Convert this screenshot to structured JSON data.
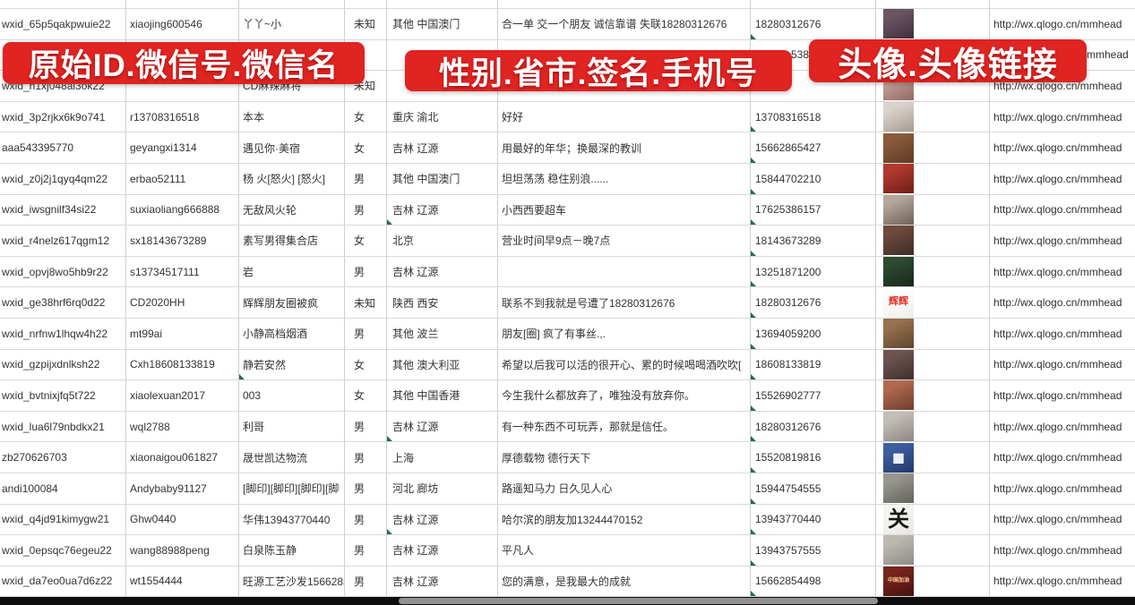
{
  "banners": [
    {
      "text": "原始ID.微信号.微信名"
    },
    {
      "text": "性别.省市.签名.手机号"
    },
    {
      "text": "头像.头像链接"
    }
  ],
  "colors": {
    "banner_red": "#df2422",
    "error_triangle_green": "#1e7145",
    "scrollbar_track": "#0e0e0e",
    "scrollbar_thumb": "#929292"
  },
  "avatar_link_text": "http://wx.qlogo.cn/mmhead",
  "rows": [
    {
      "wxid": "wxid_65p5qakpwuie22",
      "wechat_id": "xiaojing600546",
      "name": "丫丫~小",
      "gender": "未知",
      "region": "其他 中国澳门",
      "signature": "合一单 交一个朋友 诚信靠谱 失联18280312676",
      "phone": "18280312676",
      "phone_tri": true,
      "link": "http://wx.qlogo.cn/mmhead",
      "avatar": {
        "c1": "#6b5563",
        "c2": "#3e2f3c"
      }
    },
    {
      "wxid": "",
      "wechat_id": "",
      "name": "",
      "gender": "",
      "region": "",
      "signature": "",
      "phone": "5386",
      "phone_indent": 40,
      "link": "mmhead",
      "link_indent": 104,
      "avatar": {
        "c1": "#cfc6c0",
        "c2": "#a99d96"
      }
    },
    {
      "wxid": "wxid_h1xj048al3ok22",
      "wechat_id": "",
      "name": "CD麻辣麻将",
      "gender": "未知",
      "region": "",
      "signature": "",
      "phone": "",
      "link": "http://wx.qlogo.cn/mmhead",
      "avatar": {
        "c1": "#c9a49b",
        "c2": "#8f6a64"
      }
    },
    {
      "wxid": "wxid_3p2rjkx6k9o741",
      "wechat_id": "r13708316518",
      "name": "本本",
      "gender": "女",
      "region": "重庆 渝北",
      "signature": "好好",
      "phone": "13708316518",
      "phone_tri": true,
      "link": "http://wx.qlogo.cn/mmhead",
      "avatar": {
        "c1": "#d9d3cd",
        "c2": "#a79a92"
      }
    },
    {
      "wxid": "aaa543395770",
      "wechat_id": "geyangxi1314",
      "name": "遇见你·美宿",
      "gender": "女",
      "region": "吉林 辽源",
      "signature": "用最好的年华；换最深的教训",
      "phone": "15662865427",
      "phone_tri": true,
      "link": "http://wx.qlogo.cn/mmhead",
      "avatar": {
        "c1": "#8a5a3b",
        "c2": "#5d3a26"
      }
    },
    {
      "wxid": "wxid_z0j2j1qyq4qm22",
      "wechat_id": "erbao52111",
      "name": "杨 火[怒火] [怒火]",
      "gender": "男",
      "region": "其他 中国澳门",
      "signature": "坦坦荡荡 稳住别浪......",
      "phone": "15844702210",
      "phone_tri": true,
      "link": "http://wx.qlogo.cn/mmhead",
      "avatar": {
        "c1": "#b2392c",
        "c2": "#6d1f18"
      }
    },
    {
      "wxid": "wxid_iwsgnilf34si22",
      "wechat_id": "suxiaoliang666888",
      "name": "无敌风火轮",
      "gender": "男",
      "region": "吉林 辽源",
      "region_tri": true,
      "signature": "小西西要超车",
      "phone": "17625386157",
      "phone_tri": true,
      "link": "http://wx.qlogo.cn/mmhead",
      "avatar": {
        "c1": "#b3a79c",
        "c2": "#6f6158"
      }
    },
    {
      "wxid": "wxid_r4nelz617qgm12",
      "wechat_id": "sx18143673289",
      "name": "素写男得集合店",
      "gender": "女",
      "region": "北京",
      "signature": "营业时间早9点－晚7点",
      "phone": "18143673289",
      "phone_tri": true,
      "link": "http://wx.qlogo.cn/mmhead",
      "avatar": {
        "c1": "#6e4a3c",
        "c2": "#3c2c26"
      }
    },
    {
      "wxid": "wxid_opvj8wo5hb9r22",
      "wechat_id": "s13734517111",
      "name": "岩",
      "gender": "男",
      "region": "吉林 辽源",
      "signature": "",
      "phone": "13251871200",
      "phone_tri": true,
      "link": "http://wx.qlogo.cn/mmhead",
      "avatar": {
        "c1": "#2e4a33",
        "c2": "#16281b"
      }
    },
    {
      "wxid": "wxid_ge38hrf6rq0d22",
      "wechat_id": "CD2020HH",
      "name": "辉辉朋友圈被疯",
      "gender": "未知",
      "region": "陕西 西安",
      "signature": "联系不到我就是号遭了18280312676",
      "phone": "18280312676",
      "phone_tri": true,
      "link": "http://wx.qlogo.cn/mmhead",
      "avatar": {
        "c1": "#fdfdfd",
        "c2": "#f0eeec",
        "label": "辉辉",
        "label_color": "#e03028",
        "label_size": 11
      }
    },
    {
      "wxid": "wxid_nrfnw1lhqw4h22",
      "wechat_id": "mt99ai",
      "name": "小静高档烟酒",
      "gender": "男",
      "region": "其他 波兰",
      "signature": "朋友[圈] 疯了有事丝.,.",
      "phone": "13694059200",
      "phone_tri": true,
      "link": "http://wx.qlogo.cn/mmhead",
      "avatar": {
        "c1": "#96724f",
        "c2": "#5f4430"
      }
    },
    {
      "wxid": "wxid_gzpijxdnlksh22",
      "wechat_id": "Cxh18608133819",
      "name": "静若安然",
      "name_tri": true,
      "gender": "女",
      "region": "其他 澳大利亚",
      "signature": "希望以后我可以活的很开心、累的时候喝喝酒吹吹[",
      "phone": "18608133819",
      "phone_tri": true,
      "link": "http://wx.qlogo.cn/mmhead",
      "avatar": {
        "c1": "#6d5450",
        "c2": "#3f2e2c"
      }
    },
    {
      "wxid": "wxid_bvtnixjfq5t722",
      "wechat_id": "xiaolexuan2017",
      "name": "003",
      "gender": "女",
      "region": "其他 中国香港",
      "signature": "今生我什么都放弃了，唯独没有放弃你。",
      "phone": "15526902777",
      "phone_tri": true,
      "link": "http://wx.qlogo.cn/mmhead",
      "avatar": {
        "c1": "#b06a4e",
        "c2": "#6f3c2c"
      }
    },
    {
      "wxid": "wxid_lua6l79nbdkx21",
      "wechat_id": "wql2788",
      "name": "利哥",
      "gender": "男",
      "region": "吉林 辽源",
      "region_tri": true,
      "signature": "有一种东西不可玩弄，那就是信任。",
      "phone": "18280312676",
      "phone_tri": true,
      "link": "http://wx.qlogo.cn/mmhead",
      "avatar": {
        "c1": "#c2bdb6",
        "c2": "#8d8780"
      }
    },
    {
      "wxid": "zb270626703",
      "wechat_id": "xiaonaigou061827",
      "name": "晟世凯达物流",
      "gender": "男",
      "region": "上海",
      "signature": "厚德载物 德行天下",
      "phone": "15520819816",
      "phone_tri": true,
      "link": "http://wx.qlogo.cn/mmhead",
      "avatar": {
        "c1": "#3d5fa0",
        "c2": "#23386a",
        "label": "▦",
        "label_color": "#ffffff",
        "label_size": 14
      }
    },
    {
      "wxid": "andi100084",
      "wechat_id": "Andybaby91127",
      "name": "[脚印][脚印][脚印][脚",
      "gender": "男",
      "region": "河北 廊坊",
      "signature": "路遥知马力 日久见人心",
      "phone": "15944754555",
      "phone_tri": true,
      "link": "http://wx.qlogo.cn/mmhead",
      "avatar": {
        "c1": "#97968f",
        "c2": "#63625c"
      }
    },
    {
      "wxid": "wxid_q4jd91kimygw21",
      "wechat_id": "Ghw0440",
      "name": "华伟13943770440",
      "gender": "男",
      "region": "吉林 辽源",
      "region_tri": true,
      "signature": "哈尔滨的朋友加13244470152",
      "phone": "13943770440",
      "phone_tri": true,
      "link": "http://wx.qlogo.cn/mmhead",
      "avatar": {
        "c1": "#f6f5f1",
        "c2": "#e9e7e1",
        "label": "关",
        "label_color": "#151515",
        "label_size": 24
      }
    },
    {
      "wxid": "wxid_0epsqc76egeu22",
      "wechat_id": "wang88988peng",
      "name": "白泉陈玉静",
      "gender": "男",
      "region": "吉林 辽源",
      "signature": "平凡人",
      "phone": "13943757555",
      "phone_tri": true,
      "link": "http://wx.qlogo.cn/mmhead",
      "avatar": {
        "c1": "#bcb9b3",
        "c2": "#8e8b84"
      }
    },
    {
      "wxid": "wxid_da7eo0ua7d6z22",
      "wechat_id": "wt1554444",
      "name": "旺源工艺沙发15662854",
      "gender": "男",
      "region": "吉林 辽源",
      "signature": "您的满意，是我最大的成就",
      "phone": "15662854498",
      "phone_tri": true,
      "link": "http://wx.qlogo.cn/mmhead",
      "avatar": {
        "c1": "#79231d",
        "c2": "#47120f",
        "label": "中国加油",
        "label_color": "#ffd08a",
        "label_size": 6
      }
    },
    {
      "wxid": "",
      "wechat_id": "",
      "name": "",
      "gender": "",
      "region": "",
      "signature": "",
      "phone": "",
      "link": "",
      "avatar": {
        "c1": "#5a7fb4",
        "c2": "#3c5a8a"
      }
    }
  ]
}
